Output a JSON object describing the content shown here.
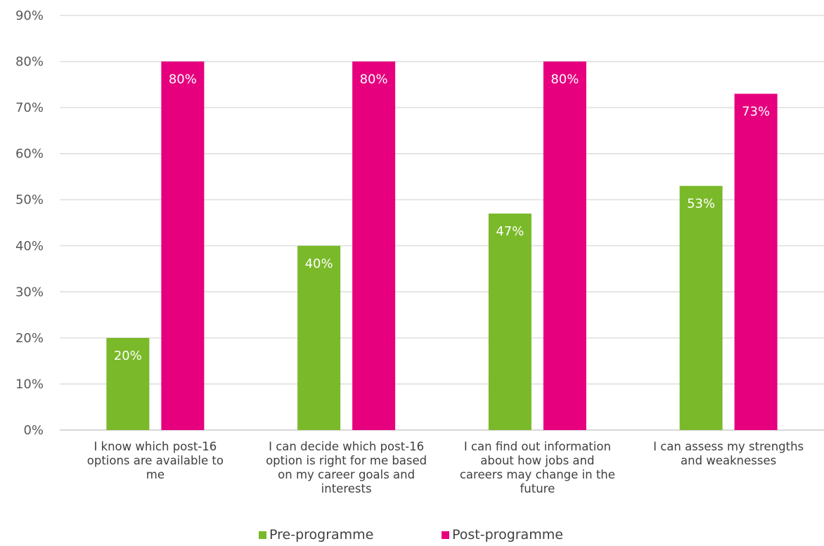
{
  "chart_data": {
    "type": "bar",
    "categories": [
      [
        "I know which post-16",
        "options are available to",
        "me"
      ],
      [
        "I can decide which post-16",
        "option is right for me based",
        "on my career goals and",
        "interests"
      ],
      [
        "I can find out information",
        "about how jobs and",
        "careers may change in the",
        "future"
      ],
      [
        "I can assess my strengths",
        "and weaknesses"
      ]
    ],
    "series": [
      {
        "name": "Pre-programme",
        "color": "#7ab929",
        "values": [
          20,
          40,
          47,
          53
        ],
        "labels": [
          "20%",
          "40%",
          "47%",
          "53%"
        ]
      },
      {
        "name": "Post-programme",
        "color": "#e6007e",
        "values": [
          80,
          80,
          80,
          73
        ],
        "labels": [
          "80%",
          "80%",
          "80%",
          "73%"
        ]
      }
    ],
    "yticks": [
      "0%",
      "10%",
      "20%",
      "30%",
      "40%",
      "50%",
      "60%",
      "70%",
      "80%",
      "90%"
    ],
    "ylim": [
      0,
      90
    ],
    "grid": true,
    "legend": "bottom"
  }
}
